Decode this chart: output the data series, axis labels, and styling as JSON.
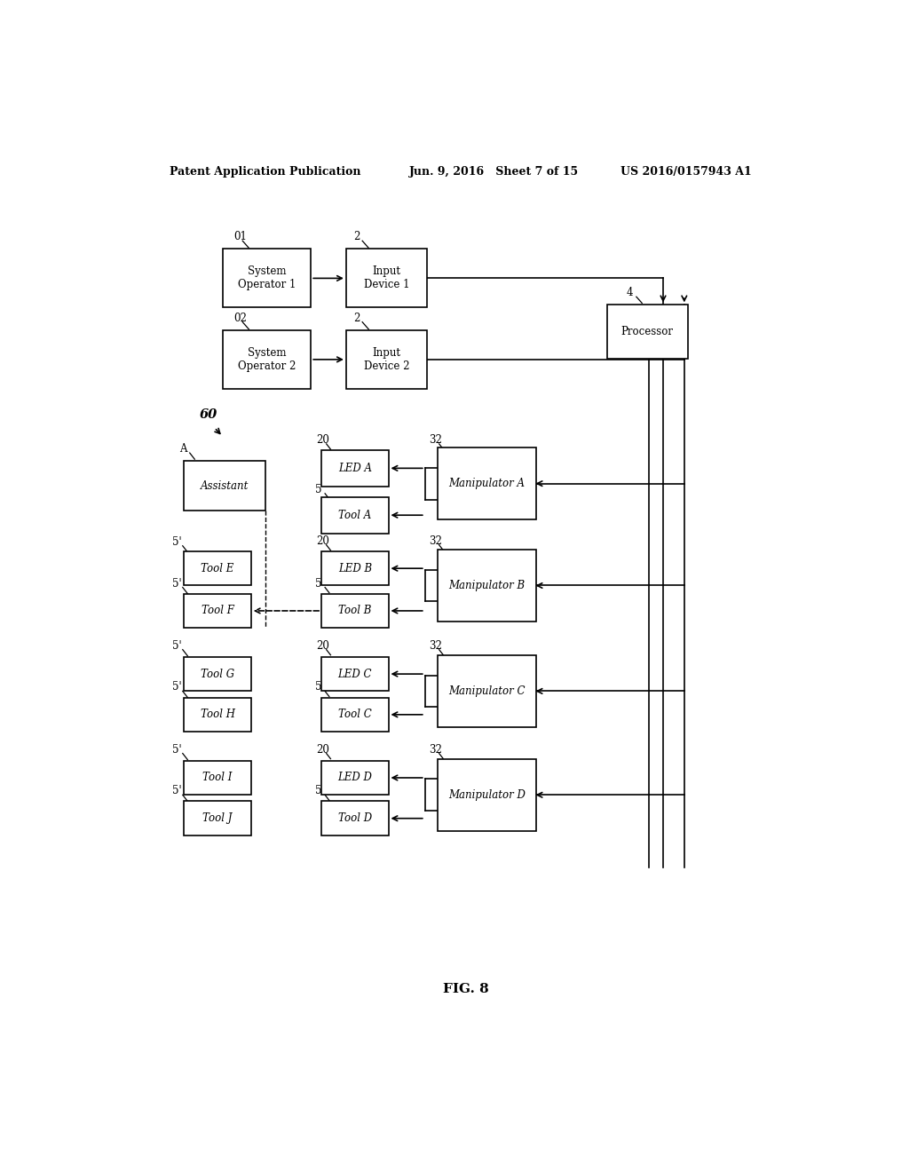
{
  "header_left": "Patent Application Publication",
  "header_mid": "Jun. 9, 2016   Sheet 7 of 15",
  "header_right": "US 2016/0157943 A1",
  "fig_label": "FIG. 8",
  "background_color": "#ffffff",
  "boxes": {
    "sys_op1": [
      0.155,
      0.815,
      0.125,
      0.065,
      "System\nOperator 1",
      false,
      false
    ],
    "sys_op2": [
      0.155,
      0.725,
      0.125,
      0.065,
      "System\nOperator 2",
      false,
      false
    ],
    "input1": [
      0.33,
      0.815,
      0.115,
      0.065,
      "Input\nDevice 1",
      false,
      false
    ],
    "input2": [
      0.33,
      0.725,
      0.115,
      0.065,
      "Input\nDevice 2",
      false,
      false
    ],
    "processor": [
      0.7,
      0.758,
      0.115,
      0.06,
      "Processor",
      false,
      false
    ],
    "assistant": [
      0.1,
      0.59,
      0.115,
      0.055,
      "Assistant",
      true,
      false
    ],
    "led_a": [
      0.295,
      0.617,
      0.095,
      0.04,
      "LED A",
      true,
      false
    ],
    "tool_a": [
      0.295,
      0.565,
      0.095,
      0.04,
      "Tool A",
      true,
      false
    ],
    "manip_a": [
      0.46,
      0.58,
      0.14,
      0.08,
      "Manipulator A",
      true,
      false
    ],
    "tool_e": [
      0.1,
      0.507,
      0.095,
      0.038,
      "Tool E",
      true,
      false
    ],
    "tool_f": [
      0.1,
      0.46,
      0.095,
      0.038,
      "Tool F",
      true,
      false
    ],
    "led_b": [
      0.295,
      0.507,
      0.095,
      0.038,
      "LED B",
      true,
      true
    ],
    "tool_b": [
      0.295,
      0.46,
      0.095,
      0.038,
      "Tool B",
      true,
      false
    ],
    "manip_b": [
      0.46,
      0.467,
      0.14,
      0.08,
      "Manipulator B",
      true,
      false
    ],
    "tool_g": [
      0.1,
      0.39,
      0.095,
      0.038,
      "Tool G",
      true,
      false
    ],
    "tool_h": [
      0.1,
      0.345,
      0.095,
      0.038,
      "Tool H",
      true,
      false
    ],
    "led_c": [
      0.295,
      0.39,
      0.095,
      0.038,
      "LED C",
      true,
      false
    ],
    "tool_c": [
      0.295,
      0.345,
      0.095,
      0.038,
      "Tool C",
      true,
      false
    ],
    "manip_c": [
      0.46,
      0.35,
      0.14,
      0.08,
      "Manipulator C",
      true,
      false
    ],
    "tool_i": [
      0.1,
      0.275,
      0.095,
      0.038,
      "Tool I",
      true,
      false
    ],
    "tool_j": [
      0.1,
      0.23,
      0.095,
      0.038,
      "Tool J",
      true,
      false
    ],
    "led_d": [
      0.295,
      0.275,
      0.095,
      0.038,
      "LED D",
      true,
      false
    ],
    "tool_d": [
      0.295,
      0.23,
      0.095,
      0.038,
      "Tool D",
      true,
      false
    ],
    "manip_d": [
      0.46,
      0.235,
      0.14,
      0.08,
      "Manipulator D",
      true,
      false
    ]
  }
}
